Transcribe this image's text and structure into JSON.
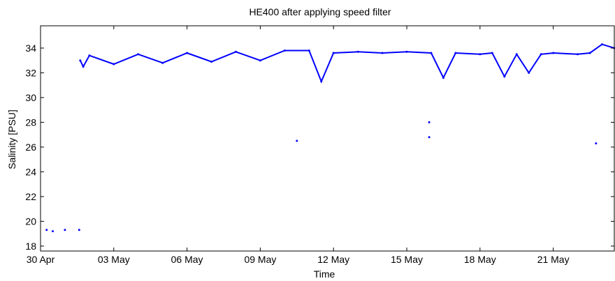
{
  "chart_data": {
    "type": "scatter",
    "title": "HE400 after applying speed filter",
    "xlabel": "Time",
    "ylabel": "Salinity [PSU]",
    "x_unit": "days",
    "xlim": [
      "2012-04-30",
      "2012-05-23T12:00"
    ],
    "ylim": [
      17.6,
      35.8
    ],
    "x_ticks": [
      {
        "date": "2012-04-30",
        "label": "30 Apr"
      },
      {
        "date": "2012-05-03",
        "label": "03 May"
      },
      {
        "date": "2012-05-06",
        "label": "06 May"
      },
      {
        "date": "2012-05-09",
        "label": "09 May"
      },
      {
        "date": "2012-05-12",
        "label": "12 May"
      },
      {
        "date": "2012-05-15",
        "label": "15 May"
      },
      {
        "date": "2012-05-18",
        "label": "18 May"
      },
      {
        "date": "2012-05-21",
        "label": "21 May"
      }
    ],
    "y_ticks": [
      18,
      20,
      22,
      24,
      26,
      28,
      30,
      32,
      34
    ],
    "series_color": "#0000ff",
    "grid": false,
    "series": [
      {
        "values": [
          {
            "x": "2012-04-30T06:00",
            "y": 19.3
          },
          {
            "x": "2012-04-30T12:00",
            "y": 19.2
          },
          {
            "x": "2012-05-01T00:00",
            "y": 19.3
          },
          {
            "x": "2012-05-01T14:00",
            "y": 19.3
          },
          {
            "x": "2012-05-01T15:00",
            "y": 33.0
          },
          {
            "x": "2012-05-01T18:00",
            "y": 32.5
          },
          {
            "x": "2012-05-02T00:00",
            "y": 33.4
          },
          {
            "x": "2012-05-03T00:00",
            "y": 32.7
          },
          {
            "x": "2012-05-04T00:00",
            "y": 33.5
          },
          {
            "x": "2012-05-05T00:00",
            "y": 32.8
          },
          {
            "x": "2012-05-06T00:00",
            "y": 33.6
          },
          {
            "x": "2012-05-07T00:00",
            "y": 32.9
          },
          {
            "x": "2012-05-08T00:00",
            "y": 33.7
          },
          {
            "x": "2012-05-09T00:00",
            "y": 33.0
          },
          {
            "x": "2012-05-10T00:00",
            "y": 33.8
          },
          {
            "x": "2012-05-10T12:00",
            "y": 26.5
          },
          {
            "x": "2012-05-11T00:00",
            "y": 33.8
          },
          {
            "x": "2012-05-11T12:00",
            "y": 31.3
          },
          {
            "x": "2012-05-12T00:00",
            "y": 33.6
          },
          {
            "x": "2012-05-13T00:00",
            "y": 33.7
          },
          {
            "x": "2012-05-14T00:00",
            "y": 33.6
          },
          {
            "x": "2012-05-15T00:00",
            "y": 33.7
          },
          {
            "x": "2012-05-15T22:00",
            "y": 28.0
          },
          {
            "x": "2012-05-15T22:00",
            "y": 26.8
          },
          {
            "x": "2012-05-16T00:00",
            "y": 33.6
          },
          {
            "x": "2012-05-16T12:00",
            "y": 31.6
          },
          {
            "x": "2012-05-17T00:00",
            "y": 33.6
          },
          {
            "x": "2012-05-18T00:00",
            "y": 33.5
          },
          {
            "x": "2012-05-18T12:00",
            "y": 33.6
          },
          {
            "x": "2012-05-19T00:00",
            "y": 31.7
          },
          {
            "x": "2012-05-19T12:00",
            "y": 33.5
          },
          {
            "x": "2012-05-20T00:00",
            "y": 32.0
          },
          {
            "x": "2012-05-20T12:00",
            "y": 33.5
          },
          {
            "x": "2012-05-21T00:00",
            "y": 33.6
          },
          {
            "x": "2012-05-22T00:00",
            "y": 33.5
          },
          {
            "x": "2012-05-22T12:00",
            "y": 33.6
          },
          {
            "x": "2012-05-22T18:00",
            "y": 26.3
          },
          {
            "x": "2012-05-23T00:00",
            "y": 34.3
          },
          {
            "x": "2012-05-23T12:00",
            "y": 34.0
          }
        ]
      }
    ]
  }
}
